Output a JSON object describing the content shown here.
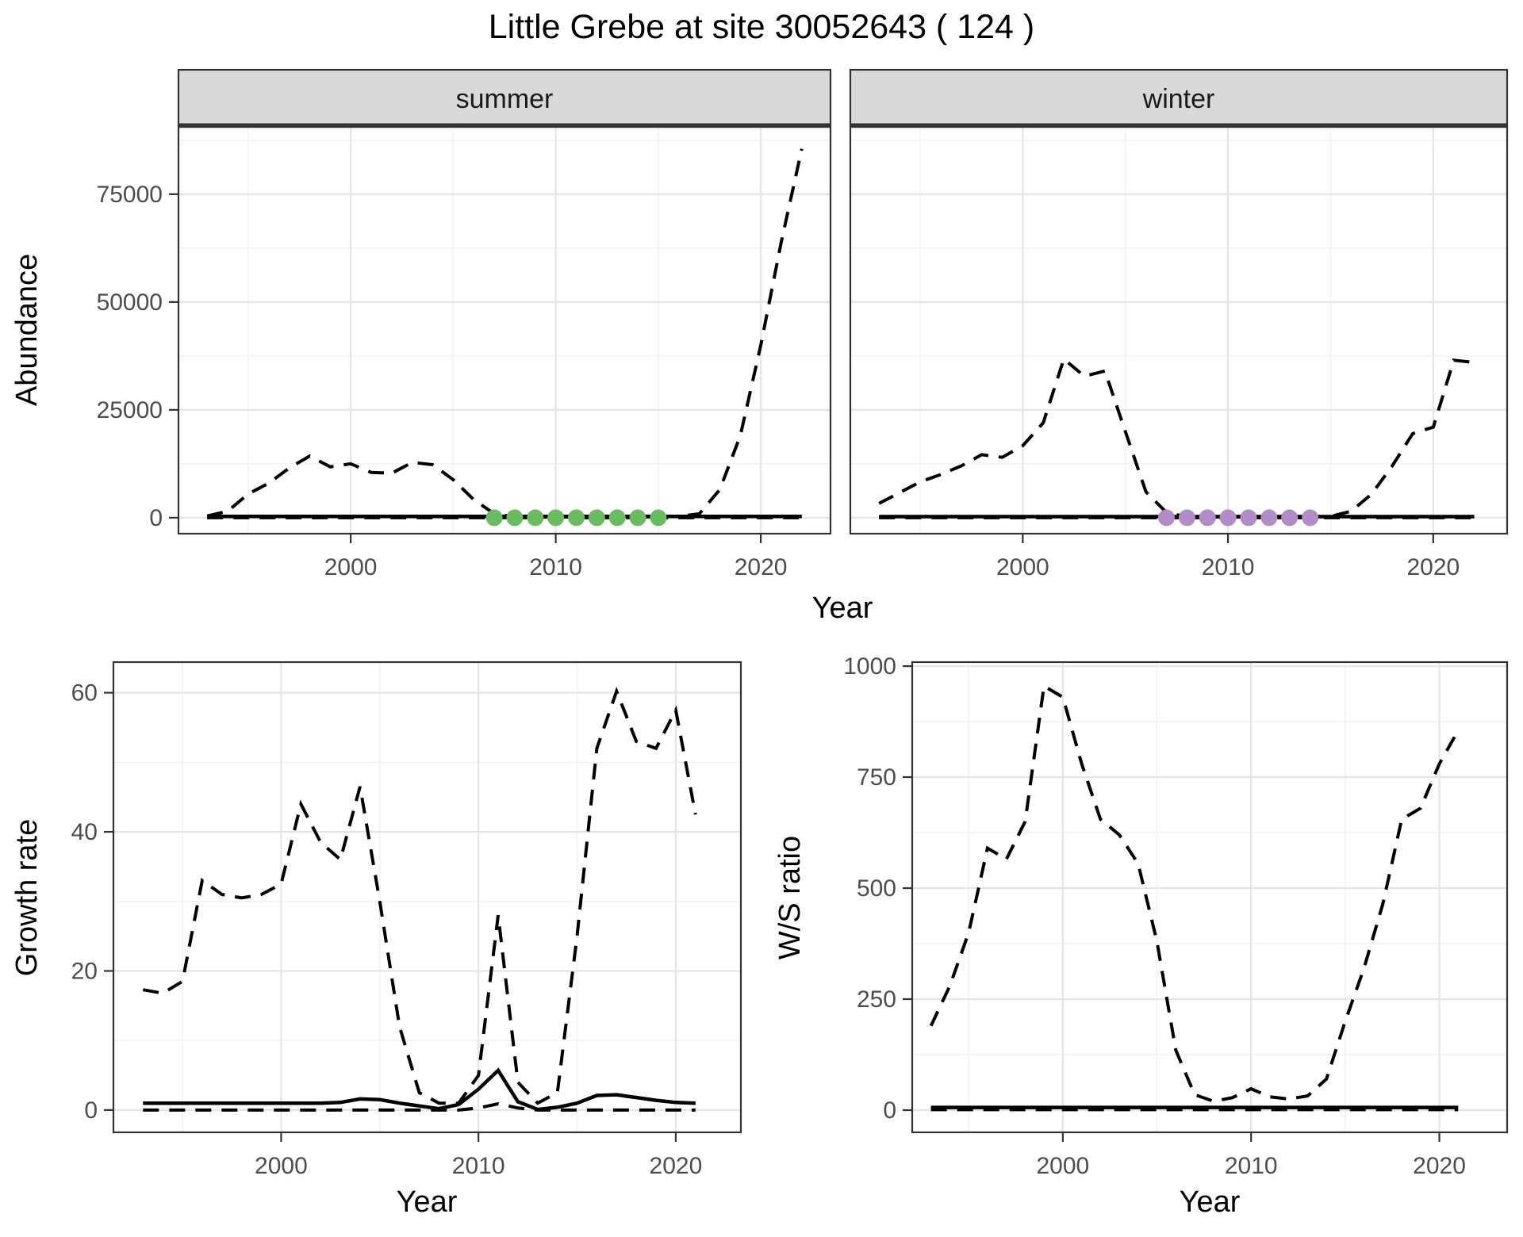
{
  "title": "Little Grebe at site 30052643 ( 124 )",
  "styles": {
    "line": "#000000",
    "grid_major": "#e5e5e5",
    "grid_minor": "#f2f2f2",
    "border": "#333333",
    "strip_bg": "#d9d9d9",
    "tick_label_color": "#4d4d4d",
    "summer_point_color": "#6abd5e",
    "winter_point_color": "#b28cc6",
    "dash_pattern": "20 13"
  },
  "chart_data": [
    {
      "panel": "summer",
      "type": "line",
      "facet_label": "summer",
      "ylabel": "Abundance",
      "xlabel": "Year",
      "xlim": [
        1991.6,
        2023.4
      ],
      "ylim": [
        -3700,
        90600
      ],
      "x_ticks": [
        2000,
        2010,
        2020
      ],
      "x_tick_labels": [
        "2000",
        "2010",
        "2020"
      ],
      "x_minor": [
        1995,
        2005,
        2015
      ],
      "y_ticks": [
        0,
        25000,
        50000,
        75000
      ],
      "y_tick_labels": [
        "0",
        "25000",
        "50000",
        "75000"
      ],
      "y_minor": [
        12500,
        37500,
        62500,
        87500
      ],
      "x_years": [
        1993,
        1994,
        1995,
        1996,
        1997,
        1998,
        1999,
        2000,
        2001,
        2002,
        2003,
        2004,
        2005,
        2006,
        2007,
        2008,
        2009,
        2010,
        2011,
        2012,
        2013,
        2014,
        2015,
        2016,
        2017,
        2018,
        2019,
        2020,
        2021,
        2022
      ],
      "series": [
        {
          "name": "upper-ci",
          "dash": true,
          "width": 4,
          "values": [
            400,
            1500,
            5500,
            8000,
            11500,
            14300,
            11800,
            12500,
            10500,
            10300,
            12800,
            12300,
            8800,
            4200,
            900,
            200,
            150,
            150,
            200,
            150,
            150,
            150,
            200,
            300,
            900,
            6500,
            19000,
            40000,
            64000,
            85500
          ]
        },
        {
          "name": "lower-ci",
          "dash": true,
          "width": 4,
          "values": [
            0,
            0,
            0,
            0,
            0,
            0,
            0,
            0,
            0,
            0,
            0,
            0,
            0,
            0,
            0,
            0,
            0,
            0,
            0,
            0,
            0,
            0,
            0,
            0,
            0,
            0,
            0,
            0,
            0,
            0
          ]
        },
        {
          "name": "index",
          "dash": false,
          "width": 4.5,
          "values": [
            300,
            300,
            300,
            300,
            300,
            300,
            300,
            300,
            300,
            300,
            300,
            300,
            300,
            300,
            300,
            300,
            300,
            300,
            300,
            300,
            300,
            300,
            300,
            300,
            300,
            300,
            300,
            300,
            300,
            300
          ]
        }
      ],
      "points": {
        "name": "imputed-point-summer",
        "color": "#6abd5e",
        "value": 0,
        "years": [
          2007,
          2008,
          2009,
          2010,
          2011,
          2012,
          2013,
          2014,
          2015
        ]
      }
    },
    {
      "panel": "winter",
      "type": "line",
      "facet_label": "winter",
      "ylabel": "Abundance",
      "xlabel": "Year",
      "xlim": [
        1991.6,
        2023.6
      ],
      "ylim": [
        -3700,
        90600
      ],
      "x_ticks": [
        2000,
        2010,
        2020
      ],
      "x_tick_labels": [
        "2000",
        "2010",
        "2020"
      ],
      "x_minor": [
        1995,
        2005,
        2015
      ],
      "y_ticks": [
        0,
        25000,
        50000,
        75000
      ],
      "y_tick_labels": [
        "0",
        "25000",
        "50000",
        "75000"
      ],
      "y_minor": [
        12500,
        37500,
        62500,
        87500
      ],
      "x_years": [
        1993,
        1994,
        1995,
        1996,
        1997,
        1998,
        1999,
        2000,
        2001,
        2002,
        2003,
        2004,
        2005,
        2006,
        2007,
        2008,
        2009,
        2010,
        2011,
        2012,
        2013,
        2014,
        2015,
        2016,
        2017,
        2018,
        2019,
        2020,
        2021,
        2022
      ],
      "series": [
        {
          "name": "upper-ci",
          "dash": true,
          "width": 4,
          "values": [
            3300,
            5800,
            8300,
            10000,
            12000,
            14600,
            14000,
            16700,
            22000,
            36800,
            32800,
            34000,
            20000,
            6000,
            1200,
            200,
            150,
            150,
            150,
            150,
            150,
            150,
            300,
            1500,
            5500,
            12000,
            19500,
            21000,
            36500,
            36000
          ]
        },
        {
          "name": "lower-ci",
          "dash": true,
          "width": 4,
          "values": [
            0,
            0,
            0,
            0,
            0,
            0,
            0,
            0,
            0,
            0,
            0,
            0,
            0,
            0,
            0,
            0,
            0,
            0,
            0,
            0,
            0,
            0,
            0,
            0,
            0,
            0,
            0,
            0,
            0,
            0
          ]
        },
        {
          "name": "index",
          "dash": false,
          "width": 4.5,
          "values": [
            250,
            250,
            250,
            250,
            250,
            250,
            250,
            250,
            250,
            250,
            250,
            250,
            250,
            250,
            250,
            250,
            250,
            250,
            250,
            250,
            250,
            250,
            250,
            250,
            250,
            250,
            250,
            250,
            250,
            250
          ]
        }
      ],
      "points": {
        "name": "imputed-point-winter",
        "color": "#b28cc6",
        "value": 0,
        "years": [
          2007,
          2008,
          2009,
          2010,
          2011,
          2012,
          2013,
          2014
        ]
      }
    },
    {
      "panel": "growth",
      "type": "line",
      "facet_label": "",
      "ylabel": "Growth rate",
      "xlabel": "Year",
      "xlim": [
        1991.5,
        2023.3
      ],
      "ylim": [
        -3.2,
        64.4
      ],
      "x_ticks": [
        2000,
        2010,
        2020
      ],
      "x_tick_labels": [
        "2000",
        "2010",
        "2020"
      ],
      "x_minor": [
        1995,
        2005,
        2015
      ],
      "y_ticks": [
        0,
        20,
        40,
        60
      ],
      "y_tick_labels": [
        "0",
        "20",
        "40",
        "60"
      ],
      "y_minor": [
        10,
        30,
        50
      ],
      "x_years": [
        1993,
        1994,
        1995,
        1996,
        1997,
        1998,
        1999,
        2000,
        2001,
        2002,
        2003,
        2004,
        2005,
        2006,
        2007,
        2008,
        2009,
        2010,
        2011,
        2012,
        2013,
        2014,
        2015,
        2016,
        2017,
        2018,
        2019,
        2020,
        2021
      ],
      "series": [
        {
          "name": "upper-ci",
          "dash": true,
          "width": 4,
          "values": [
            17.3,
            16.8,
            18.5,
            33,
            31,
            30.5,
            31,
            32.5,
            44,
            38.5,
            36,
            46.5,
            30,
            12,
            2.5,
            1,
            1,
            5,
            28,
            4,
            1,
            2.5,
            25,
            52,
            60.2,
            53,
            52,
            57.5,
            42.5
          ]
        },
        {
          "name": "lower-ci",
          "dash": true,
          "width": 4,
          "values": [
            0,
            0,
            0,
            0,
            0,
            0,
            0,
            0,
            0,
            0,
            0,
            0,
            0,
            0,
            0,
            0,
            0,
            0.3,
            0.9,
            0.3,
            0,
            0,
            0,
            0,
            0,
            0,
            0,
            0,
            0
          ]
        },
        {
          "name": "index",
          "dash": false,
          "width": 4.5,
          "values": [
            1,
            1,
            1,
            1,
            1,
            1,
            1,
            1,
            1,
            1,
            1.1,
            1.6,
            1.5,
            1,
            0.6,
            0.2,
            0.8,
            3,
            5.7,
            1.2,
            0.1,
            0.4,
            1,
            2.1,
            2.2,
            1.8,
            1.4,
            1.1,
            1
          ]
        }
      ]
    },
    {
      "panel": "ws",
      "type": "line",
      "facet_label": "",
      "ylabel": "W/S ratio",
      "xlabel": "Year",
      "xlim": [
        1992.0,
        2023.6
      ],
      "ylim": [
        -50,
        1009
      ],
      "x_ticks": [
        2000,
        2010,
        2020
      ],
      "x_tick_labels": [
        "2000",
        "2010",
        "2020"
      ],
      "x_minor": [
        1995,
        2005,
        2015
      ],
      "y_ticks": [
        0,
        250,
        500,
        750,
        1000
      ],
      "y_tick_labels": [
        "0",
        "250",
        "500",
        "750",
        "1000"
      ],
      "y_minor": [
        125,
        375,
        625,
        875
      ],
      "x_years": [
        1993,
        1994,
        1995,
        1996,
        1997,
        1998,
        1999,
        2000,
        2001,
        2002,
        2003,
        2004,
        2005,
        2006,
        2007,
        2008,
        2009,
        2010,
        2011,
        2012,
        2013,
        2014,
        2015,
        2016,
        2017,
        2018,
        2019,
        2020,
        2021
      ],
      "series": [
        {
          "name": "upper-ci",
          "dash": true,
          "width": 4,
          "values": [
            190,
            280,
            400,
            590,
            565,
            650,
            955,
            930,
            780,
            655,
            620,
            555,
            380,
            135,
            35,
            20,
            28,
            48,
            30,
            25,
            32,
            70,
            200,
            320,
            465,
            655,
            680,
            780,
            855
          ]
        },
        {
          "name": "lower-ci",
          "dash": true,
          "width": 4,
          "values": [
            1,
            1,
            1,
            1,
            1,
            1,
            1,
            1,
            1,
            1,
            1,
            1,
            1,
            1,
            1,
            1,
            1,
            1,
            1,
            1,
            1,
            1,
            1,
            1,
            1,
            1,
            1,
            1,
            1
          ]
        },
        {
          "name": "index",
          "dash": false,
          "width": 4.5,
          "values": [
            6,
            6,
            6,
            6,
            6,
            6,
            6,
            6,
            6,
            6,
            6,
            6,
            6,
            6,
            6,
            6,
            6,
            6,
            6,
            6,
            6,
            6,
            6,
            6,
            6,
            6,
            6,
            6,
            6
          ]
        }
      ]
    }
  ]
}
